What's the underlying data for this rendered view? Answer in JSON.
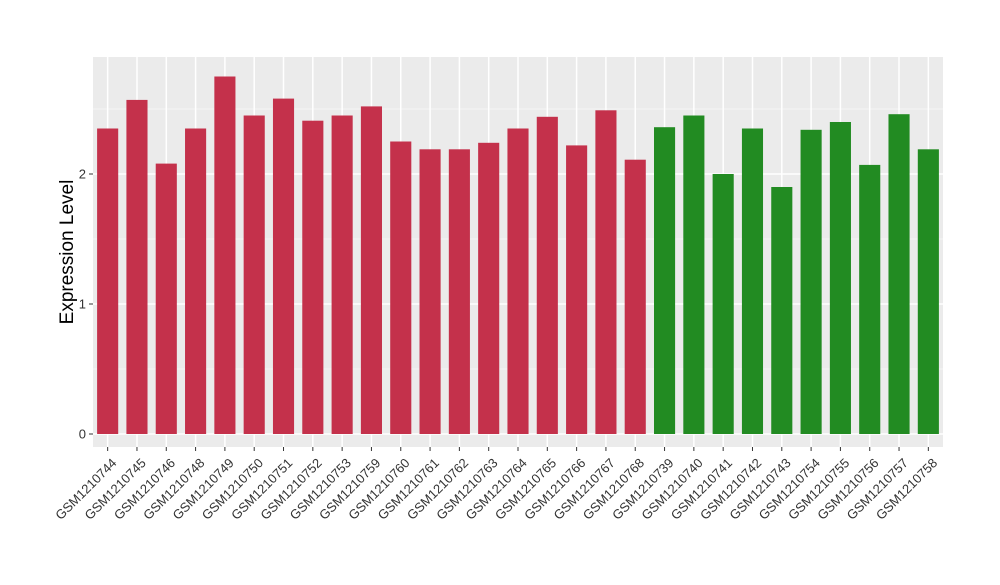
{
  "chart_data": {
    "type": "bar",
    "ylabel": "Expression Level",
    "xlabel": "",
    "ylim": [
      -0.1,
      2.9
    ],
    "yticks": [
      0,
      1,
      2
    ],
    "grid": true,
    "categories": [
      "GSM1210744",
      "GSM1210745",
      "GSM1210746",
      "GSM1210748",
      "GSM1210749",
      "GSM1210750",
      "GSM1210751",
      "GSM1210752",
      "GSM1210753",
      "GSM1210759",
      "GSM1210760",
      "GSM1210761",
      "GSM1210762",
      "GSM1210763",
      "GSM1210764",
      "GSM1210765",
      "GSM1210766",
      "GSM1210767",
      "GSM1210768",
      "GSM1210739",
      "GSM1210740",
      "GSM1210741",
      "GSM1210742",
      "GSM1210743",
      "GSM1210754",
      "GSM1210755",
      "GSM1210756",
      "GSM1210757",
      "GSM1210758"
    ],
    "values": [
      2.35,
      2.57,
      2.08,
      2.35,
      2.75,
      2.45,
      2.58,
      2.41,
      2.45,
      2.52,
      2.25,
      2.19,
      2.19,
      2.24,
      2.35,
      2.44,
      2.22,
      2.49,
      2.11,
      2.36,
      2.45,
      2.0,
      2.35,
      1.9,
      2.34,
      2.4,
      2.07,
      2.46,
      2.19
    ],
    "group_sizes": [
      19,
      10
    ],
    "colors": [
      "#c4314b",
      "#228b22"
    ]
  }
}
